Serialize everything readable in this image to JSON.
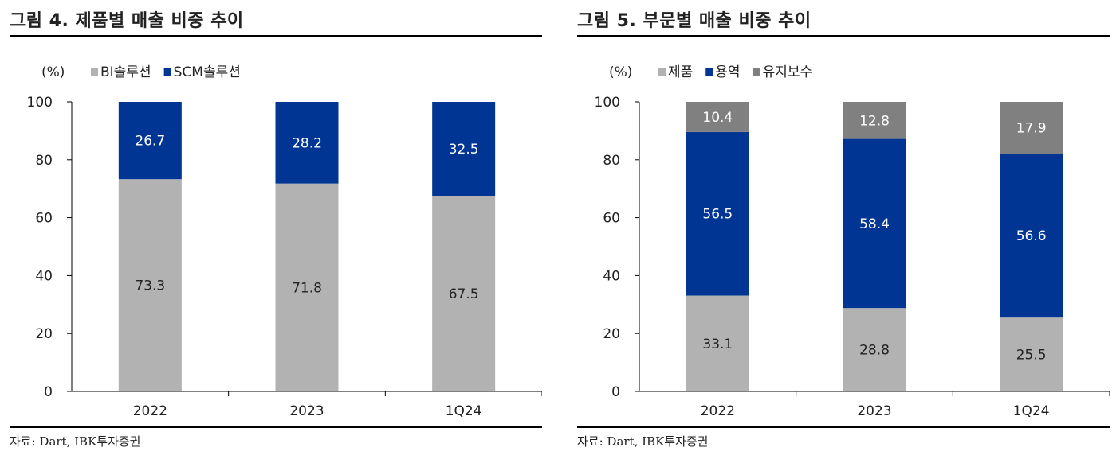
{
  "source_label": "자료: Dart, IBK투자증권",
  "chart_data": [
    {
      "type": "bar",
      "stacked": true,
      "title": "그림 4. 제품별 매출 비중 추이",
      "unit": "(%)",
      "xlabel": "",
      "ylabel": "(%)",
      "ylim": [
        0,
        100
      ],
      "yticks": [
        "0",
        "20",
        "40",
        "60",
        "80",
        "100"
      ],
      "categories": [
        "2022",
        "2023",
        "1Q24"
      ],
      "series": [
        {
          "name": "BI솔루션",
          "color": "#b2b2b2",
          "label_color": "#222222",
          "values": [
            73.3,
            71.8,
            67.5
          ]
        },
        {
          "name": "SCM솔루션",
          "color": "#003594",
          "label_color": "#ffffff",
          "values": [
            26.7,
            28.2,
            32.5
          ]
        }
      ],
      "data_labels": [
        [
          "73.3",
          "71.8",
          "67.5"
        ],
        [
          "26.7",
          "28.2",
          "32.5"
        ]
      ]
    },
    {
      "type": "bar",
      "stacked": true,
      "title": "그림 5. 부문별 매출 비중 추이",
      "unit": "(%)",
      "xlabel": "",
      "ylabel": "(%)",
      "ylim": [
        0,
        100
      ],
      "yticks": [
        "0",
        "20",
        "40",
        "60",
        "80",
        "100"
      ],
      "categories": [
        "2022",
        "2023",
        "1Q24"
      ],
      "series": [
        {
          "name": "제품",
          "color": "#b2b2b2",
          "label_color": "#222222",
          "values": [
            33.1,
            28.8,
            25.5
          ]
        },
        {
          "name": "용역",
          "color": "#003594",
          "label_color": "#ffffff",
          "values": [
            56.5,
            58.4,
            56.6
          ]
        },
        {
          "name": "유지보수",
          "color": "#808080",
          "label_color": "#ffffff",
          "values": [
            10.4,
            12.8,
            17.9
          ]
        }
      ],
      "data_labels": [
        [
          "33.1",
          "28.8",
          "25.5"
        ],
        [
          "56.5",
          "58.4",
          "56.6"
        ],
        [
          "10.4",
          "12.8",
          "17.9"
        ]
      ]
    }
  ]
}
